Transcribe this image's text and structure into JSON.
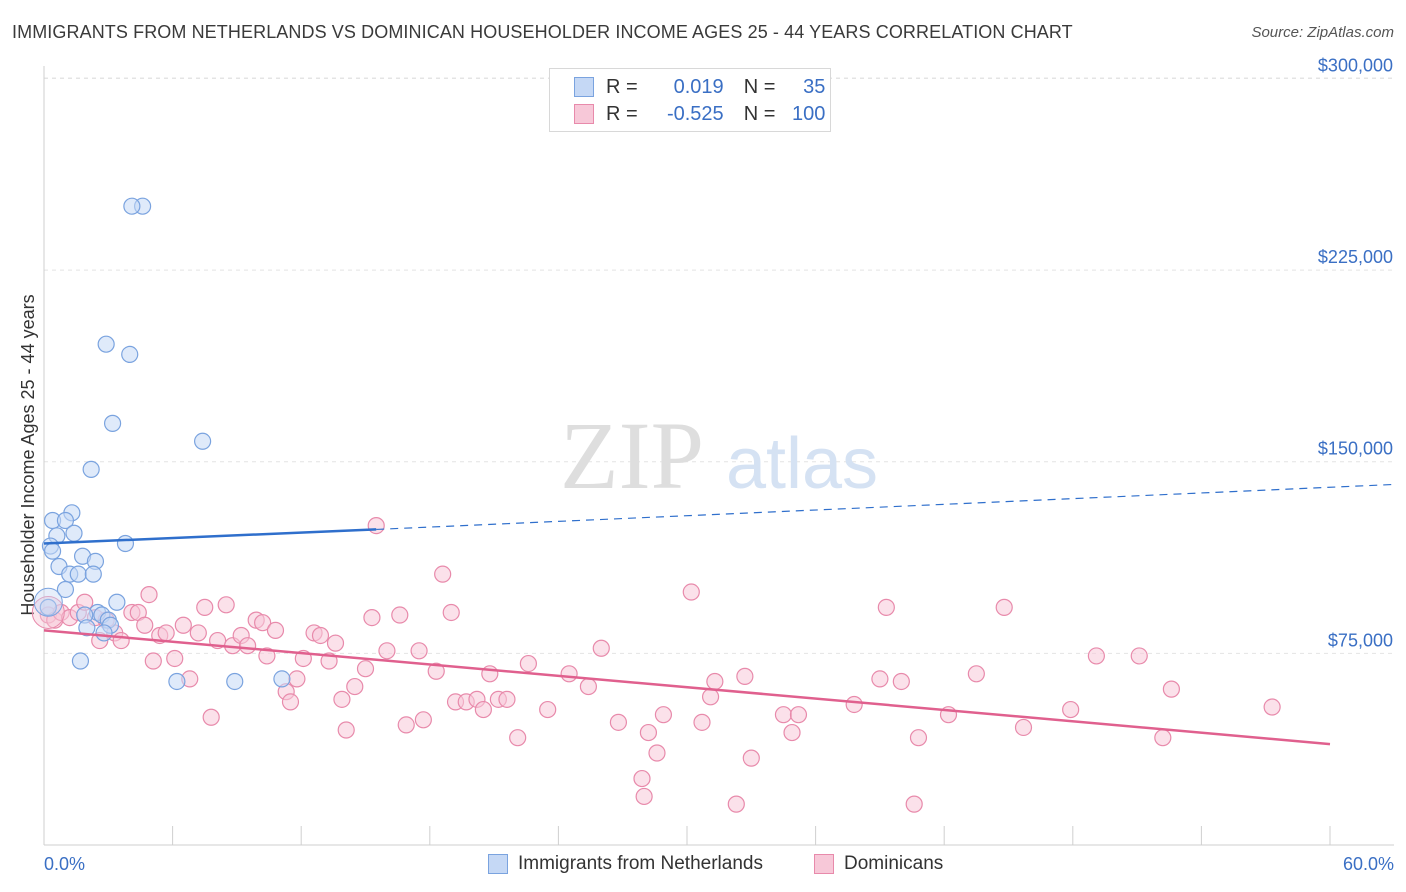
{
  "header": {
    "title": "IMMIGRANTS FROM NETHERLANDS VS DOMINICAN HOUSEHOLDER INCOME AGES 25 - 44 YEARS CORRELATION CHART",
    "source": "Source: ZipAtlas.com"
  },
  "legend": {
    "rows": [
      {
        "r_label": "R =",
        "r_value": "0.019",
        "n_label": "N =",
        "n_value": "35"
      },
      {
        "r_label": "R =",
        "r_value": "-0.525",
        "n_label": "N =",
        "n_value": "100"
      }
    ]
  },
  "bottom_legend": {
    "items": [
      {
        "label": "Immigrants from Netherlands"
      },
      {
        "label": "Dominicans"
      }
    ]
  },
  "colors": {
    "blue_fill": "#c5d8f5",
    "blue_stroke": "#7aa3df",
    "blue_line": "#2f6fcc",
    "pink_fill": "#f7c8d8",
    "pink_stroke": "#e88aab",
    "pink_line": "#e0608e",
    "axis_text": "#3a6fc4",
    "watermark": "#dcdcdc"
  },
  "chart_data": {
    "type": "scatter",
    "title": "IMMIGRANTS FROM NETHERLANDS VS DOMINICAN HOUSEHOLDER INCOME AGES 25 - 44 YEARS CORRELATION CHART",
    "xlabel": "",
    "ylabel": "Householder Income Ages 25 - 44 years",
    "xlim": [
      0,
      60
    ],
    "ylim": [
      0,
      308000
    ],
    "x_tick_labels": [
      "0.0%",
      "60.0%"
    ],
    "y_ticks": [
      75000,
      150000,
      225000,
      300000
    ],
    "y_tick_labels": [
      "$75,000",
      "$150,000",
      "$225,000",
      "$300,000"
    ],
    "grid": "horizontal dashed",
    "legend_placement": "top-center",
    "watermark": {
      "zip": "ZIP",
      "atlas": "atlas"
    },
    "series": [
      {
        "name": "Immigrants from Netherlands",
        "color": "#7aa3df",
        "points": [
          [
            4.6,
            250000
          ],
          [
            4.1,
            250000
          ],
          [
            2.9,
            196000
          ],
          [
            4.0,
            192000
          ],
          [
            3.2,
            165000
          ],
          [
            7.4,
            158000
          ],
          [
            2.2,
            147000
          ],
          [
            1.3,
            130000
          ],
          [
            0.4,
            127000
          ],
          [
            1.0,
            127000
          ],
          [
            1.4,
            122000
          ],
          [
            0.6,
            121000
          ],
          [
            3.8,
            118000
          ],
          [
            0.3,
            117000
          ],
          [
            0.4,
            115000
          ],
          [
            1.8,
            113000
          ],
          [
            2.4,
            111000
          ],
          [
            0.7,
            109000
          ],
          [
            1.2,
            106000
          ],
          [
            1.6,
            106000
          ],
          [
            2.3,
            106000
          ],
          [
            1.0,
            100000
          ],
          [
            0.2,
            93000
          ],
          [
            3.4,
            95000
          ],
          [
            2.5,
            91000
          ],
          [
            1.9,
            90000
          ],
          [
            2.7,
            90000
          ],
          [
            3.0,
            88000
          ],
          [
            3.1,
            86000
          ],
          [
            2.0,
            85000
          ],
          [
            2.8,
            83000
          ],
          [
            1.7,
            72000
          ],
          [
            6.2,
            64000
          ],
          [
            8.9,
            64000
          ],
          [
            11.1,
            65000
          ]
        ]
      },
      {
        "name": "Dominicans",
        "color": "#e88aab",
        "points": [
          [
            0.2,
            90000
          ],
          [
            0.5,
            88000
          ],
          [
            0.8,
            91000
          ],
          [
            1.2,
            89000
          ],
          [
            1.6,
            91000
          ],
          [
            1.9,
            95000
          ],
          [
            2.4,
            89000
          ],
          [
            2.6,
            80000
          ],
          [
            2.9,
            88000
          ],
          [
            3.3,
            83000
          ],
          [
            3.6,
            80000
          ],
          [
            4.1,
            91000
          ],
          [
            4.4,
            91000
          ],
          [
            4.7,
            86000
          ],
          [
            4.9,
            98000
          ],
          [
            5.1,
            72000
          ],
          [
            5.4,
            82000
          ],
          [
            5.7,
            83000
          ],
          [
            6.1,
            73000
          ],
          [
            6.5,
            86000
          ],
          [
            6.8,
            65000
          ],
          [
            7.2,
            83000
          ],
          [
            7.5,
            93000
          ],
          [
            7.8,
            50000
          ],
          [
            8.1,
            80000
          ],
          [
            8.5,
            94000
          ],
          [
            8.8,
            78000
          ],
          [
            9.2,
            82000
          ],
          [
            9.5,
            78000
          ],
          [
            9.9,
            88000
          ],
          [
            10.2,
            87000
          ],
          [
            10.4,
            74000
          ],
          [
            10.8,
            84000
          ],
          [
            11.3,
            60000
          ],
          [
            11.5,
            56000
          ],
          [
            11.8,
            65000
          ],
          [
            12.1,
            73000
          ],
          [
            12.6,
            83000
          ],
          [
            12.9,
            82000
          ],
          [
            13.3,
            72000
          ],
          [
            13.6,
            79000
          ],
          [
            13.9,
            57000
          ],
          [
            14.1,
            45000
          ],
          [
            14.5,
            62000
          ],
          [
            15.0,
            69000
          ],
          [
            15.3,
            89000
          ],
          [
            15.5,
            125000
          ],
          [
            16.0,
            76000
          ],
          [
            16.6,
            90000
          ],
          [
            16.9,
            47000
          ],
          [
            17.5,
            76000
          ],
          [
            17.7,
            49000
          ],
          [
            18.3,
            68000
          ],
          [
            18.6,
            106000
          ],
          [
            19.0,
            91000
          ],
          [
            19.2,
            56000
          ],
          [
            19.7,
            56000
          ],
          [
            20.2,
            57000
          ],
          [
            20.5,
            53000
          ],
          [
            20.8,
            67000
          ],
          [
            21.2,
            57000
          ],
          [
            21.6,
            57000
          ],
          [
            22.1,
            42000
          ],
          [
            22.6,
            71000
          ],
          [
            23.5,
            53000
          ],
          [
            24.5,
            67000
          ],
          [
            25.4,
            62000
          ],
          [
            26.0,
            77000
          ],
          [
            26.8,
            48000
          ],
          [
            27.9,
            26000
          ],
          [
            28.2,
            44000
          ],
          [
            28.6,
            36000
          ],
          [
            28.9,
            51000
          ],
          [
            28.0,
            19000
          ],
          [
            30.2,
            99000
          ],
          [
            30.7,
            48000
          ],
          [
            31.1,
            58000
          ],
          [
            31.3,
            64000
          ],
          [
            32.3,
            16000
          ],
          [
            33.0,
            34000
          ],
          [
            32.7,
            66000
          ],
          [
            34.5,
            51000
          ],
          [
            34.9,
            44000
          ],
          [
            35.2,
            51000
          ],
          [
            37.8,
            55000
          ],
          [
            39.0,
            65000
          ],
          [
            39.3,
            93000
          ],
          [
            40.0,
            64000
          ],
          [
            40.6,
            16000
          ],
          [
            40.8,
            42000
          ],
          [
            42.2,
            51000
          ],
          [
            43.5,
            67000
          ],
          [
            44.8,
            93000
          ],
          [
            45.7,
            46000
          ],
          [
            47.9,
            53000
          ],
          [
            49.1,
            74000
          ],
          [
            51.1,
            74000
          ],
          [
            52.2,
            42000
          ],
          [
            52.6,
            61000
          ],
          [
            57.3,
            54000
          ]
        ]
      }
    ],
    "trend_lines": [
      {
        "series": "Immigrants from Netherlands",
        "x": [
          0,
          15.5
        ],
        "y": [
          118000,
          123500
        ],
        "style": "solid",
        "extension_x": [
          15.5,
          60
        ],
        "extension_y": [
          123500,
          140000
        ],
        "extension_style": "dashed"
      },
      {
        "series": "Dominicans",
        "x": [
          0,
          60
        ],
        "y": [
          84000,
          39500
        ],
        "style": "solid"
      }
    ]
  }
}
